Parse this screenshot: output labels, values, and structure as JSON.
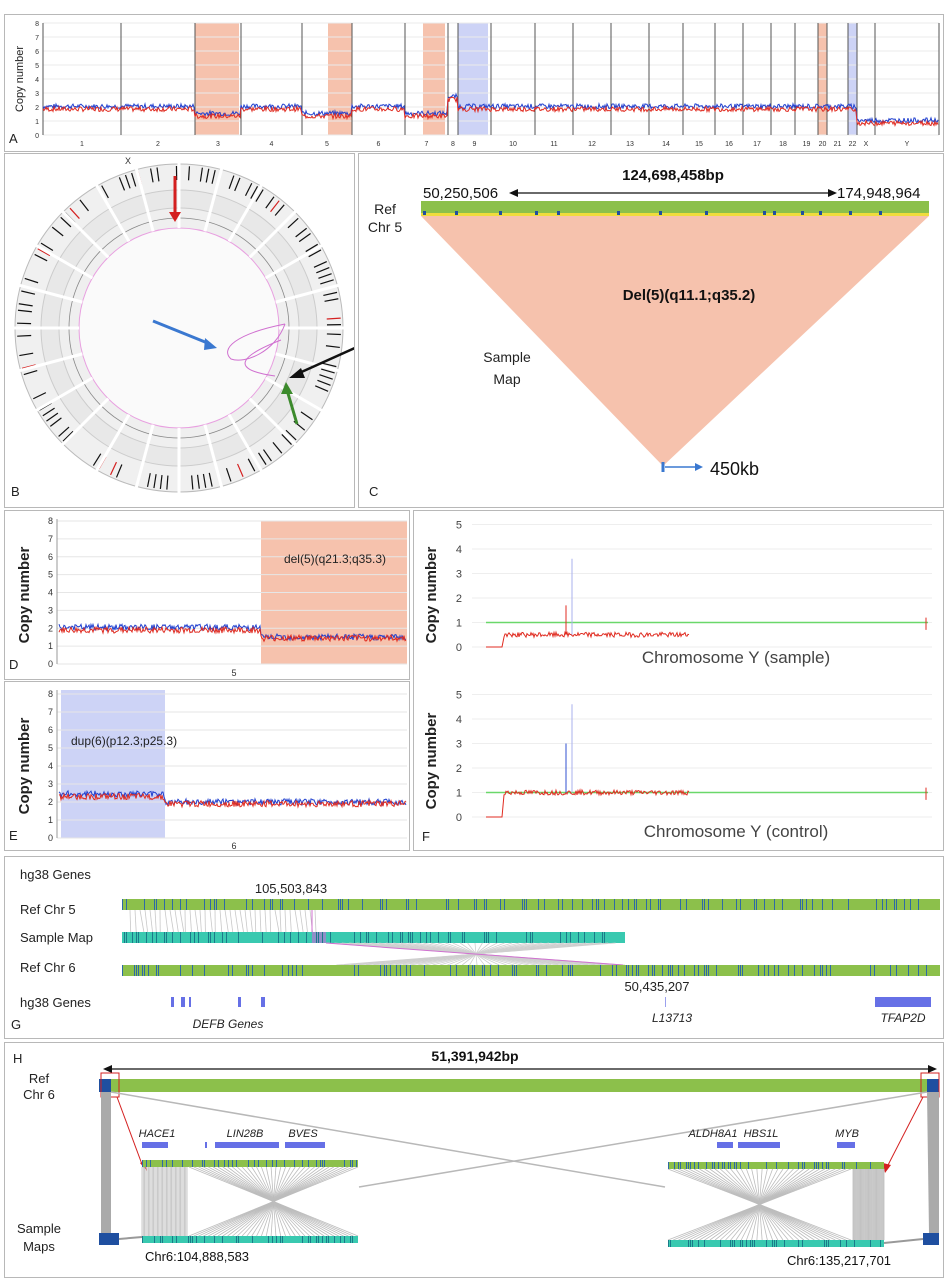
{
  "panel_letters": [
    "A",
    "B",
    "C",
    "D",
    "E",
    "F",
    "G",
    "H"
  ],
  "panelA": {
    "ylabel": "Copy number",
    "yticks": [
      "0",
      "1",
      "2",
      "3",
      "4",
      "5",
      "6",
      "7",
      "8"
    ],
    "chromosomes": [
      "1",
      "2",
      "3",
      "4",
      "5",
      "6",
      "7",
      "8",
      "9",
      "10",
      "11",
      "12",
      "13",
      "14",
      "15",
      "16",
      "17",
      "18",
      "19",
      "20",
      "21",
      "22",
      "X",
      "Y"
    ]
  },
  "panelB": {
    "chr_label": "X"
  },
  "panelC": {
    "span": "124,698,458bp",
    "start": "50,250,506",
    "end": "174,948,964",
    "ref_label_1": "Ref",
    "ref_label_2": "Chr 5",
    "deletion": "Del(5)(q11.1;q35.2)",
    "sample_1": "Sample",
    "sample_2": "Map",
    "size": "450kb"
  },
  "panelD": {
    "ylabel": "Copy number",
    "yticks": [
      "0",
      "1",
      "2",
      "3",
      "4",
      "5",
      "6",
      "7",
      "8"
    ],
    "annotation": "del(5)(q21.3;q35.3)",
    "xlabel": "5"
  },
  "panelE": {
    "ylabel": "Copy number",
    "yticks": [
      "0",
      "1",
      "2",
      "3",
      "4",
      "5",
      "6",
      "7",
      "8"
    ],
    "annotation": "dup(6)(p12.3;p25.3)",
    "xlabel": "6"
  },
  "panelF": {
    "ylabel": "Copy number",
    "yticks": [
      "0",
      "1",
      "2",
      "3",
      "4",
      "5"
    ],
    "title_top": "Chromosome Y (sample)",
    "title_bottom": "Chromosome Y (control)"
  },
  "panelG": {
    "genes_top": "hg38 Genes",
    "pos_top": "105,503,843",
    "ref5": "Ref Chr 5",
    "sample": "Sample Map",
    "ref6": "Ref Chr 6",
    "pos_bottom": "50,435,207",
    "genes_bottom": "hg38 Genes",
    "gene1": "DEFB Genes",
    "gene2": "L13713",
    "gene3": "TFAP2D"
  },
  "panelH": {
    "span": "51,391,942bp",
    "ref_1": "Ref",
    "ref_2": "Chr 6",
    "sample_1": "Sample",
    "sample_2": "Maps",
    "genes": [
      "HACE1",
      "LIN28B",
      "BVES",
      "ALDH8A1",
      "HBS1L",
      "MYB"
    ],
    "left_pos": "Chr6:104,888,583",
    "right_pos": "Chr6:135,217,701"
  },
  "colors": {
    "salmon": "#f6c2ad",
    "lavender": "#cdd3f6",
    "blue": "#1f3fcf",
    "red": "#e02b20",
    "green_track": "#8cc04b",
    "teal_track": "#39c9b0",
    "gene_blue": "#6670e6"
  }
}
